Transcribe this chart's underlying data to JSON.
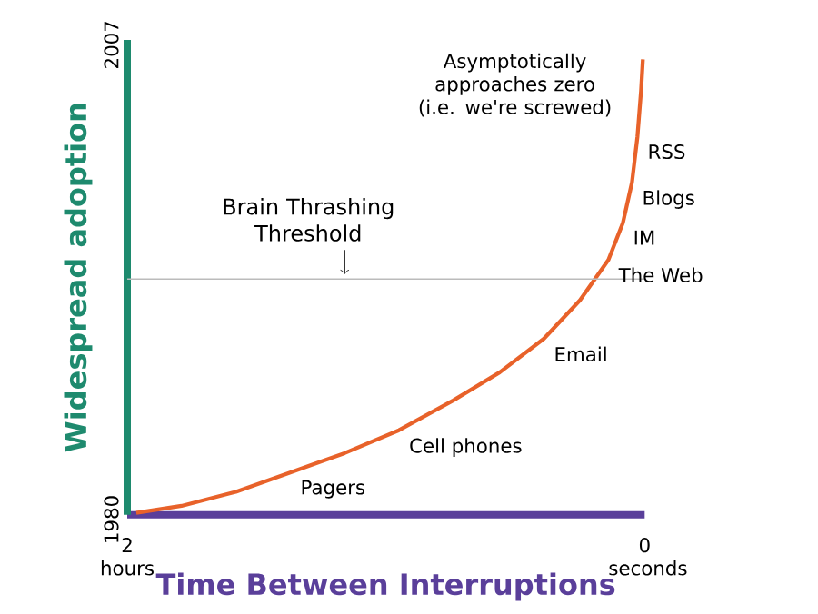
{
  "chart_data": {
    "type": "line",
    "xlabel": "Time Between Interruptions",
    "ylabel": "Widespread adoption",
    "x": [
      1.965,
      1.79,
      1.58,
      1.37,
      1.16,
      0.95,
      0.74,
      0.56,
      0.39,
      0.25,
      0.14,
      0.084,
      0.049,
      0.028,
      0.014,
      0.007
    ],
    "series": [
      {
        "color": "#e8622a",
        "values": [
          1980.1,
          1980.5,
          1981.3,
          1982.4,
          1983.5,
          1984.8,
          1986.5,
          1988.1,
          1990.0,
          1992.2,
          1994.5,
          1996.6,
          1998.9,
          2001.5,
          2004.1,
          2005.9
        ]
      }
    ],
    "xlim": [
      2,
      0
    ],
    "ylim": [
      1980,
      2007
    ],
    "xticks": [
      {
        "value": 2,
        "label": "2 hours"
      },
      {
        "value": 0,
        "label": "0 seconds"
      }
    ],
    "yticks": [
      1980,
      2007
    ],
    "ref_lines": [
      {
        "axis": "y",
        "value": 1993.4,
        "label": "Brain Thrashing Threshold",
        "color": "#bbbbbb"
      }
    ],
    "annotations": [
      "Asymptotically approaches zero (i.e. we're screwed)",
      {
        "text": "Pagers",
        "x": 1.37,
        "y": 1982.4
      },
      {
        "text": "Cell phones",
        "x": 0.95,
        "y": 1984.8
      },
      {
        "text": "Email",
        "x": 0.39,
        "y": 1990.0
      },
      {
        "text": "The Web",
        "x": 0.14,
        "y": 1994.5
      },
      {
        "text": "IM",
        "x": 0.084,
        "y": 1996.6
      },
      {
        "text": "Blogs",
        "x": 0.049,
        "y": 1998.9
      },
      {
        "text": "RSS",
        "x": 0.028,
        "y": 2001.5
      }
    ],
    "grid": false,
    "marker": "none",
    "line_style": "solid"
  }
}
